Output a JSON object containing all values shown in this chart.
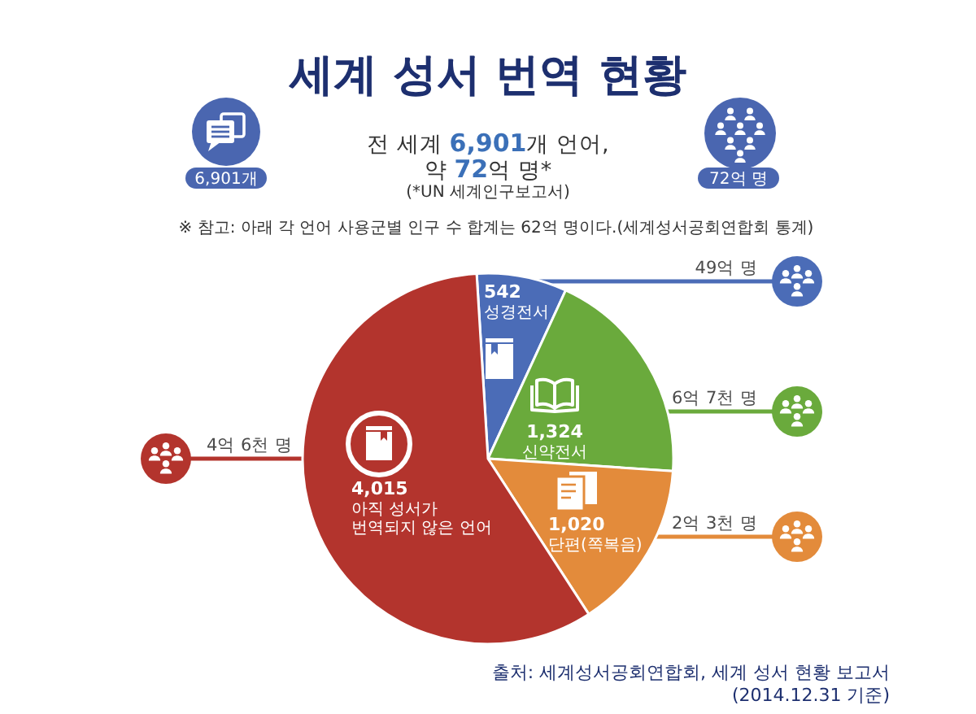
{
  "chart_data": {
    "type": "pie",
    "title": "세계 성서 번역 현황",
    "subtitle": "전 세계 6,901개 언어,\n약 72억 명*",
    "categories": [
      "성경전서",
      "신약전서",
      "단편(쪽복음)",
      "아직 성서가\n번역되지 않은 언어"
    ],
    "values": [
      542,
      1324,
      1020,
      4015
    ],
    "colors": [
      "#4b6cb7",
      "#6aaa3c",
      "#e38b3b",
      "#b3342d"
    ],
    "value_labels": [
      "542",
      "1,324",
      "1,020",
      "4,015"
    ],
    "annotations": [
      "49억 명",
      "6억 7천 명",
      "2억 3천 명",
      "4억 6천 명",
      "6,901개",
      "72억 명",
      "(*UN 세계인구보고서)",
      "※ 참고: 아래 각 언어 사용군별 인구 수 합계는 62억 명이다.(세계성서공회연합회 통계)",
      "출처: 세계성서공회연합회, 세계 성서 현황 보고서",
      "(2014.12.31 기준)"
    ]
  }
}
